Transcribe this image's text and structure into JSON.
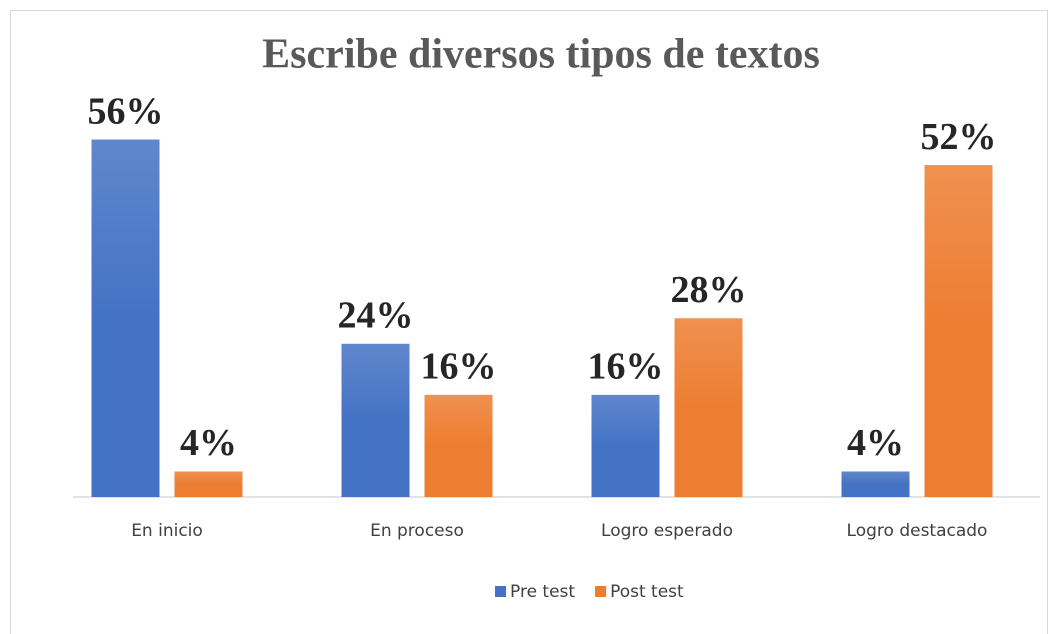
{
  "chart_data": {
    "type": "bar",
    "title": "Escribe diversos tipos de textos",
    "categories": [
      "En inicio",
      "En proceso",
      "Logro esperado",
      "Logro destacado"
    ],
    "series": [
      {
        "name": "Pre test",
        "color": "#4472c4",
        "values": [
          56,
          24,
          16,
          4
        ],
        "value_labels": [
          "56%",
          "24%",
          "16%",
          "4%"
        ]
      },
      {
        "name": "Post test",
        "color": "#ed7d31",
        "values": [
          4,
          16,
          28,
          52
        ],
        "value_labels": [
          "4%",
          "16%",
          "28%",
          "52%"
        ]
      }
    ],
    "ylim": [
      0,
      60
    ],
    "legend": "bottom"
  }
}
